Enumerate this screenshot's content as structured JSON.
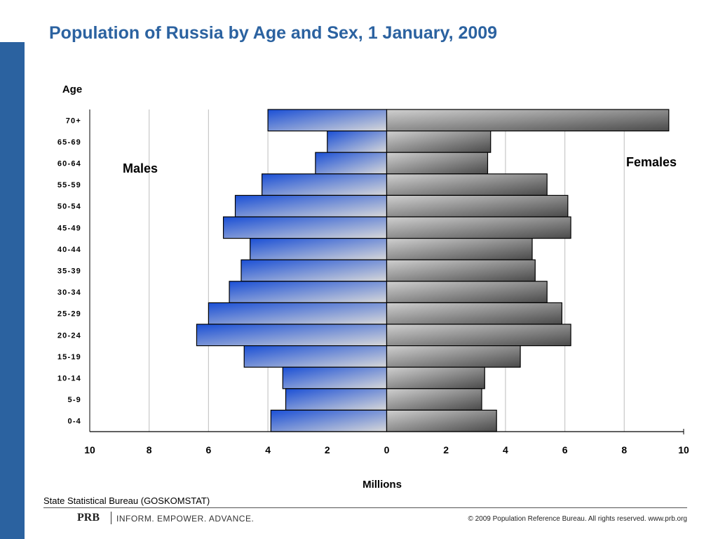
{
  "page": {
    "title": "Population of Russia by Age and Sex, 1 January, 2009",
    "source": "State Statistical Bureau (GOSKOMSTAT)",
    "brand": "PRB",
    "tagline": "INFORM. EMPOWER. ADVANCE.",
    "copyright": "© 2009 Population Reference Bureau. All rights reserved. www.prb.org",
    "accent_color": "#2b62a0"
  },
  "chart_data": {
    "type": "bar",
    "orientation": "horizontal-population-pyramid",
    "xlabel": "Millions",
    "ylabel": "Age",
    "xlim": [
      -10,
      10
    ],
    "x_ticks": [
      "10",
      "8",
      "6",
      "4",
      "2",
      "0",
      "2",
      "4",
      "6",
      "8",
      "10"
    ],
    "grid": true,
    "categories": [
      "70+",
      "65-69",
      "60-64",
      "55-59",
      "50-54",
      "45-49",
      "40-44",
      "35-39",
      "30-34",
      "25-29",
      "20-24",
      "15-19",
      "10-14",
      "5-9",
      "0-4"
    ],
    "series": [
      {
        "name": "Males",
        "side": "left",
        "color": "#2f5fd0",
        "values": [
          4.0,
          2.0,
          2.4,
          4.2,
          5.1,
          5.5,
          4.6,
          4.9,
          5.3,
          6.0,
          6.4,
          4.8,
          3.5,
          3.4,
          3.9
        ]
      },
      {
        "name": "Females",
        "side": "right",
        "color": "#555555",
        "values": [
          9.5,
          3.5,
          3.4,
          5.4,
          6.1,
          6.2,
          4.9,
          5.0,
          5.4,
          5.9,
          6.2,
          4.5,
          3.3,
          3.2,
          3.7
        ]
      }
    ]
  }
}
